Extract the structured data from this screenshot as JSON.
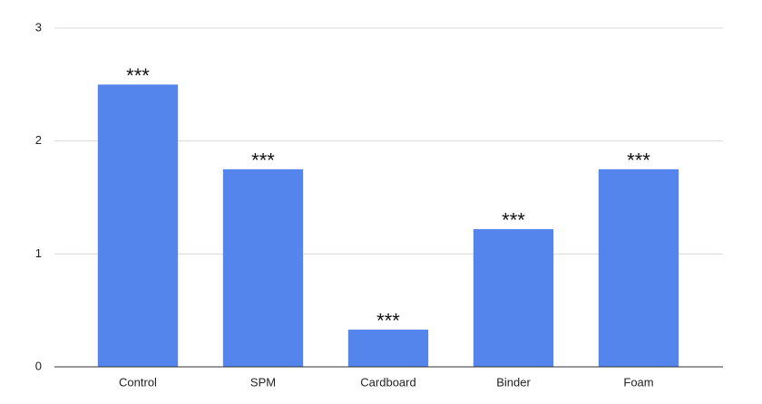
{
  "chart_data": {
    "type": "bar",
    "categories": [
      "Control",
      "SPM",
      "Cardboard",
      "Binder",
      "Foam"
    ],
    "values": [
      2.5,
      1.75,
      0.33,
      1.22,
      1.75
    ],
    "annotations": [
      "***",
      "***",
      "***",
      "***",
      "***"
    ],
    "color": "#5485ec",
    "ylim": [
      0,
      3
    ],
    "yticks": [
      0,
      1,
      2,
      3
    ],
    "grid": true
  }
}
